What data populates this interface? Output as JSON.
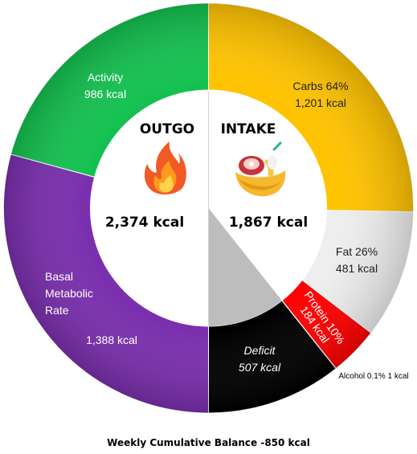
{
  "chart_data": {
    "type": "pie",
    "subtype": "donut",
    "title": "Weekly Cumulative Balance -850 kcal",
    "outgo": {
      "title": "OUTGO",
      "total": "2,374 kcal",
      "slices": [
        {
          "name": "Activity",
          "label": "Activity",
          "value_label": "986 kcal",
          "value": 986,
          "color": "#14c150"
        },
        {
          "name": "Basal Metabolic Rate",
          "label": "Basal\nMetabolic\nRate",
          "value_label": "1,388 kcal",
          "value": 1388,
          "color": "#7a2fad"
        }
      ]
    },
    "intake": {
      "title": "INTAKE",
      "total": "1,867 kcal",
      "slices": [
        {
          "name": "Carbs",
          "label": "Carbs 64%",
          "value_label": "1,201 kcal",
          "value": 1201,
          "color": "#ffc300"
        },
        {
          "name": "Fat",
          "label": "Fat 26%",
          "value_label": "481 kcal",
          "value": 481,
          "color": "#eeeeee"
        },
        {
          "name": "Protein",
          "label": "Protein 10%",
          "value_label": "184 kcal",
          "value": 184,
          "color": "#ff0000"
        },
        {
          "name": "Alcohol",
          "label": "Alcohol 0.1%",
          "value_label": "1 kcal",
          "value": 1,
          "color": "#8b0000"
        },
        {
          "name": "Deficit",
          "label": "Deficit",
          "value_label": "507 kcal",
          "value": 507,
          "color": "#000000"
        }
      ]
    }
  }
}
